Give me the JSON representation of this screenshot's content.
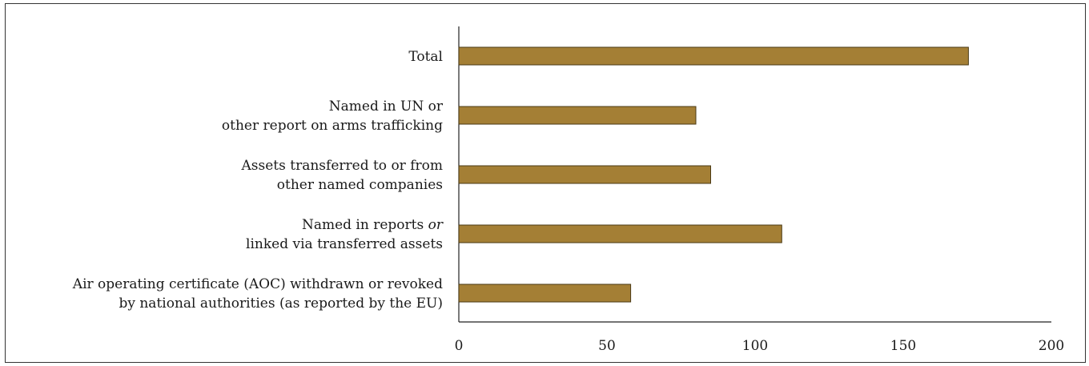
{
  "chart_data": {
    "type": "bar",
    "orientation": "horizontal",
    "categories": [
      {
        "lines": [
          "Total"
        ]
      },
      {
        "lines": [
          "Named in UN or",
          "other report on arms trafficking"
        ]
      },
      {
        "lines": [
          "Assets transferred to or from",
          "other named companies"
        ]
      },
      {
        "lines": [
          "Named in reports ",
          "or",
          "linked via transferred assets"
        ],
        "italic_word_index": 1
      },
      {
        "lines": [
          "Air operating certificate (AOC) withdrawn or revoked",
          "by national authorities (as reported by the EU)"
        ]
      }
    ],
    "values": [
      172,
      80,
      85,
      109,
      58
    ],
    "xlim": [
      0,
      200
    ],
    "xticks": [
      "0",
      "50",
      "100",
      "150",
      "200"
    ],
    "title": "",
    "xlabel": "",
    "ylabel": "",
    "grid": false,
    "legend": "none",
    "bar_color": "#a47f35",
    "bar_edge_color": "#4a3a15"
  }
}
